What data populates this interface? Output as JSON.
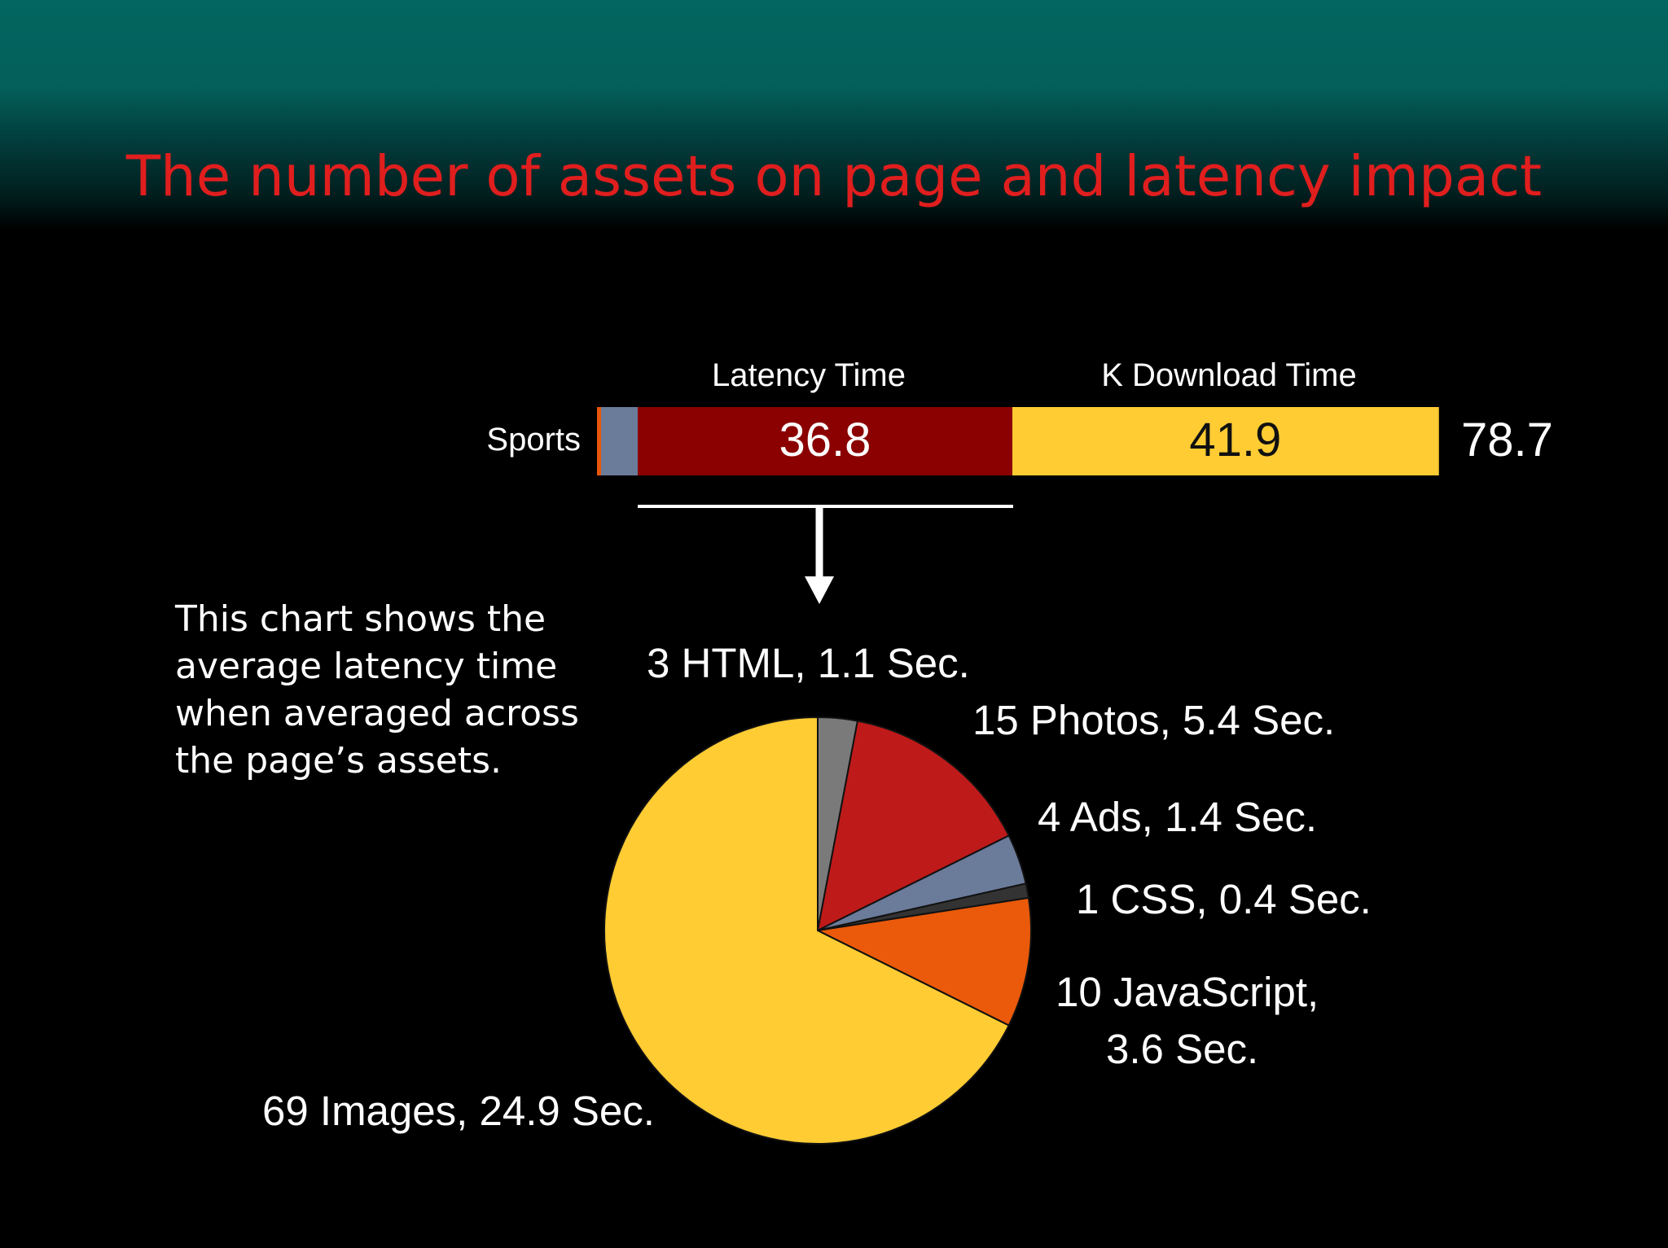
{
  "slide": {
    "title": "The number of assets on page and latency impact",
    "caption_lines": [
      "This chart shows the",
      "average latency time",
      "when averaged across",
      "the page’s assets."
    ]
  },
  "colors": {
    "title": "#e01e1e",
    "background": "#000000",
    "header_teal": "#036660",
    "latency": "#8b0000",
    "download": "#ffcc33",
    "bar_lead_blue": "#6b7b9a",
    "bar_lead_orange": "#e8560a"
  },
  "chart_data": [
    {
      "type": "bar",
      "orientation": "horizontal-stacked",
      "categories": [
        "Sports"
      ],
      "series": [
        {
          "name": "Latency Time",
          "values": [
            36.8
          ],
          "color": "#8b0000"
        },
        {
          "name": "K Download Time",
          "values": [
            41.9
          ],
          "color": "#ffcc33"
        }
      ],
      "total_label": "78.7"
    },
    {
      "type": "pie",
      "slices": [
        {
          "label": "3 HTML, 1.1 Sec.",
          "count": 3,
          "value": 1.1,
          "color": "#7a7a7a"
        },
        {
          "label": "15 Photos, 5.4 Sec.",
          "count": 15,
          "value": 5.4,
          "color": "#bf1a1a"
        },
        {
          "label": "4 Ads, 1.4 Sec.",
          "count": 4,
          "value": 1.4,
          "color": "#6b7b9a"
        },
        {
          "label": "1 CSS, 0.4 Sec.",
          "count": 1,
          "value": 0.4,
          "color": "#333333"
        },
        {
          "label_lines": [
            "10 JavaScript,",
            "3.6 Sec."
          ],
          "count": 10,
          "value": 3.6,
          "color": "#ea5a0a"
        },
        {
          "label": "69 Images, 24.9 Sec.",
          "count": 69,
          "value": 24.9,
          "color": "#ffcc33"
        }
      ]
    }
  ]
}
